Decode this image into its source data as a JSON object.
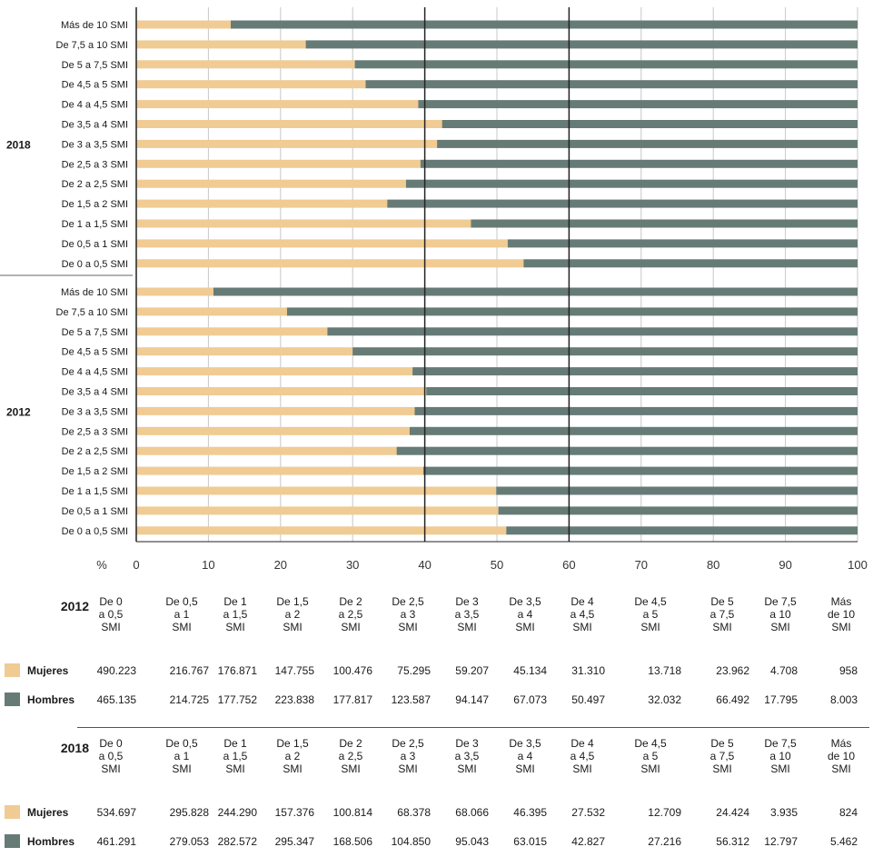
{
  "colors": {
    "mujeres": "#f0cb93",
    "hombres": "#667b75"
  },
  "chart_data": {
    "type": "bar",
    "orientation": "horizontal",
    "stacked": true,
    "xlim": [
      0,
      100
    ],
    "x_ticks": [
      "0",
      "10",
      "20",
      "30",
      "40",
      "50",
      "60",
      "70",
      "80",
      "90",
      "100"
    ],
    "x_unit_label": "%",
    "reference_lines": [
      40,
      60
    ],
    "groups": [
      {
        "year": "2018",
        "categories": [
          "Más de 10 SMI",
          "De 7,5 a 10 SMI",
          "De 5 a 7,5 SMI",
          "De 4,5 a 5 SMI",
          "De 4 a 4,5 SMI",
          "De 3,5 a 4 SMI",
          "De 3 a 3,5 SMI",
          "De 2,5 a 3 SMI",
          "De 2 a 2,5 SMI",
          "De 1,5 a 2 SMI",
          "De 1 a 1,5 SMI",
          "De 0,5 a 1 SMI",
          "De 0 a 0,5 SMI"
        ],
        "series": [
          {
            "name": "Mujeres",
            "values": [
              13.1,
              23.5,
              30.3,
              31.8,
              39.1,
              42.4,
              41.7,
              39.4,
              37.4,
              34.8,
              46.4,
              51.5,
              53.7
            ]
          },
          {
            "name": "Hombres",
            "values": [
              86.9,
              76.5,
              69.7,
              68.2,
              60.9,
              57.6,
              58.3,
              60.6,
              62.6,
              65.2,
              53.6,
              48.5,
              46.3
            ]
          }
        ]
      },
      {
        "year": "2012",
        "categories": [
          "Más de 10 SMI",
          "De 7,5 a 10 SMI",
          "De 5 a 7,5 SMI",
          "De 4,5 a 5 SMI",
          "De 4 a 4,5 SMI",
          "De 3,5 a 4 SMI",
          "De 3 a 3,5 SMI",
          "De 2,5 a 3 SMI",
          "De 2 a 2,5 SMI",
          "De 1,5 a 2 SMI",
          "De 1 a 1,5 SMI",
          "De 0,5 a 1 SMI",
          "De 0 a 0,5 SMI"
        ],
        "series": [
          {
            "name": "Mujeres",
            "values": [
              10.7,
              20.9,
              26.5,
              30.0,
              38.3,
              40.2,
              38.6,
              37.9,
              36.1,
              39.8,
              49.9,
              50.2,
              51.3
            ]
          },
          {
            "name": "Hombres",
            "values": [
              89.3,
              79.1,
              73.5,
              70.0,
              61.7,
              59.8,
              61.4,
              62.1,
              63.9,
              60.2,
              50.1,
              49.8,
              48.7
            ]
          }
        ]
      }
    ]
  },
  "tables": [
    {
      "year": "2012",
      "headers": [
        "De 0\na 0,5\nSMI",
        "De 0,5\na 1\nSMI",
        "De 1\na 1,5\nSMI",
        "De 1,5\na 2\nSMI",
        "De 2\na 2,5\nSMI",
        "De 2,5\na 3\nSMI",
        "De 3\na 3,5\nSMI",
        "De 3,5\na 4\nSMI",
        "De 4\na 4,5\nSMI",
        "De 4,5\na 5\nSMI",
        "De 5\na 7,5\nSMI",
        "De 7,5\na 10\nSMI",
        "Más\nde 10\nSMI"
      ],
      "rows": [
        {
          "label": "Mujeres",
          "values": [
            "490.223",
            "216.767",
            "176.871",
            "147.755",
            "100.476",
            "75.295",
            "59.207",
            "45.134",
            "31.310",
            "13.718",
            "23.962",
            "4.708",
            "958"
          ]
        },
        {
          "label": "Hombres",
          "values": [
            "465.135",
            "214.725",
            "177.752",
            "223.838",
            "177.817",
            "123.587",
            "94.147",
            "67.073",
            "50.497",
            "32.032",
            "66.492",
            "17.795",
            "8.003"
          ]
        }
      ]
    },
    {
      "year": "2018",
      "headers": [
        "De 0\na 0,5\nSMI",
        "De 0,5\na 1\nSMI",
        "De 1\na 1,5\nSMI",
        "De 1,5\na 2\nSMI",
        "De 2\na 2,5\nSMI",
        "De 2,5\na 3\nSMI",
        "De 3\na 3,5\nSMI",
        "De 3,5\na 4\nSMI",
        "De 4\na 4,5\nSMI",
        "De 4,5\na 5\nSMI",
        "De 5\na 7,5\nSMI",
        "De 7,5\na 10\nSMI",
        "Más\nde 10\nSMI"
      ],
      "rows": [
        {
          "label": "Mujeres",
          "values": [
            "534.697",
            "295.828",
            "244.290",
            "157.376",
            "100.814",
            "68.378",
            "68.066",
            "46.395",
            "27.532",
            "12.709",
            "24.424",
            "3.935",
            "824"
          ]
        },
        {
          "label": "Hombres",
          "values": [
            "461.291",
            "279.053",
            "282.572",
            "295.347",
            "168.506",
            "104.850",
            "95.043",
            "63.015",
            "42.827",
            "27.216",
            "56.312",
            "12.797",
            "5.462"
          ]
        }
      ]
    }
  ]
}
